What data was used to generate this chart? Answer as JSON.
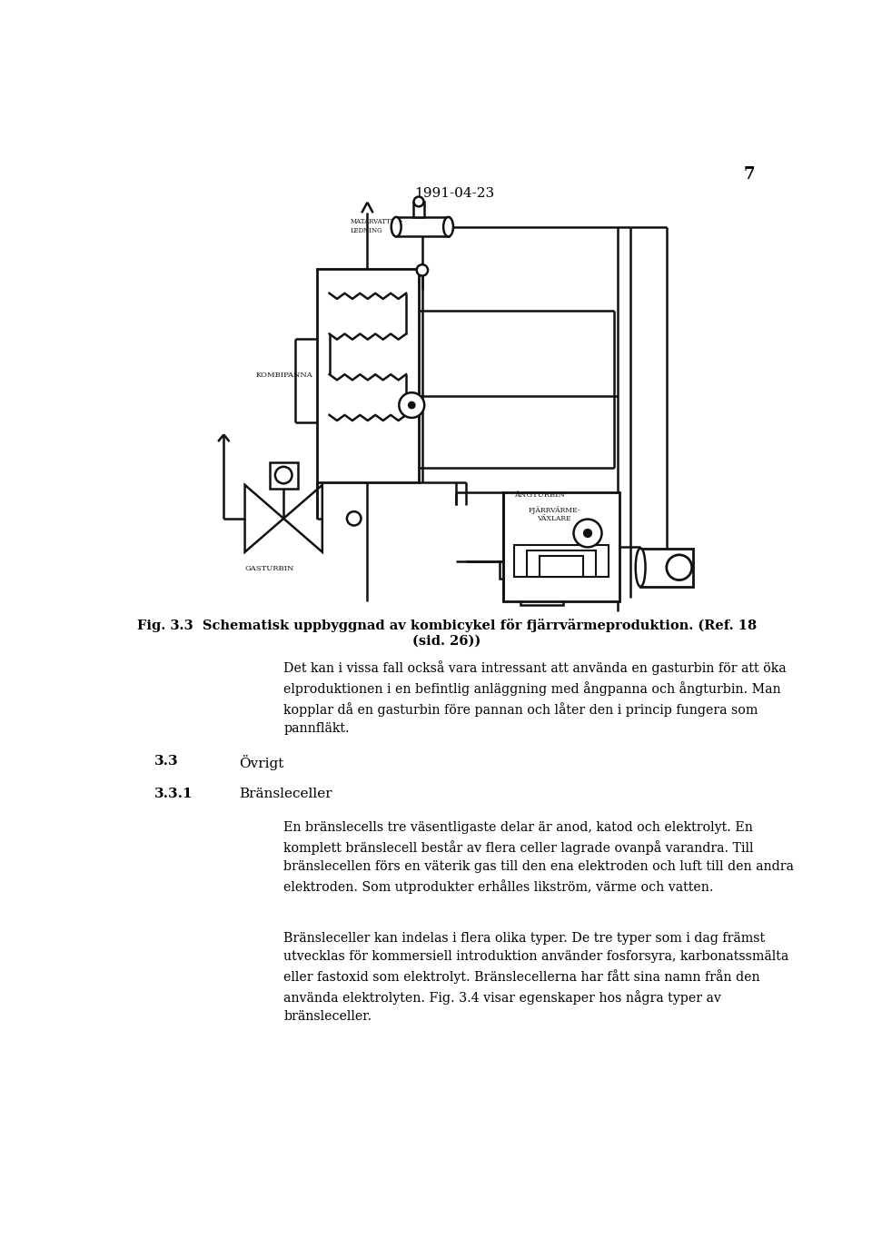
{
  "page_number": "7",
  "date": "1991-04-23",
  "fig_caption_line1": "Fig. 3.3  Schematisk uppbyggnad av kombicykel för fjärrvärmeproduktion. (Ref. 18",
  "fig_caption_line2": "(sid. 26))",
  "para1": "Det kan i vissa fall också vara intressant att använda en gasturbin för att öka\nelproduktionen i en befintlig anläggning med ångpanna och ångturbin. Man\nkopplar då en gasturbin före pannan och låter den i princip fungera som\npannfläkt.",
  "heading1_num": "3.3",
  "heading1_text": "Övrigt",
  "heading2_num": "3.3.1",
  "heading2_text": "Bränsleceller",
  "para2": "En bränslecells tre väsentligaste delar är anod, katod och elektrolyt. En\nkomplett bränslecell består av flera celler lagrade ovanpå varandra. Till\nbränslecellen förs en väterik gas till den ena elektroden och luft till den andra\nelektroden. Som utprodukter erhålles likström, värme och vatten.",
  "para3": "Bränsleceller kan indelas i flera olika typer. De tre typer som i dag främst\nutvecklas för kommersiell introduktion använder fosforsyra, karbonatssmälta\neller fastoxid som elektrolyt. Bränslecellerna har fått sina namn från den\nanvända elektrolyten. Fig. 3.4 visar egenskaper hos några typer av\nbränsleceller.",
  "bg_color": "#ffffff",
  "text_color": "#000000",
  "diagram_color": "#111111"
}
